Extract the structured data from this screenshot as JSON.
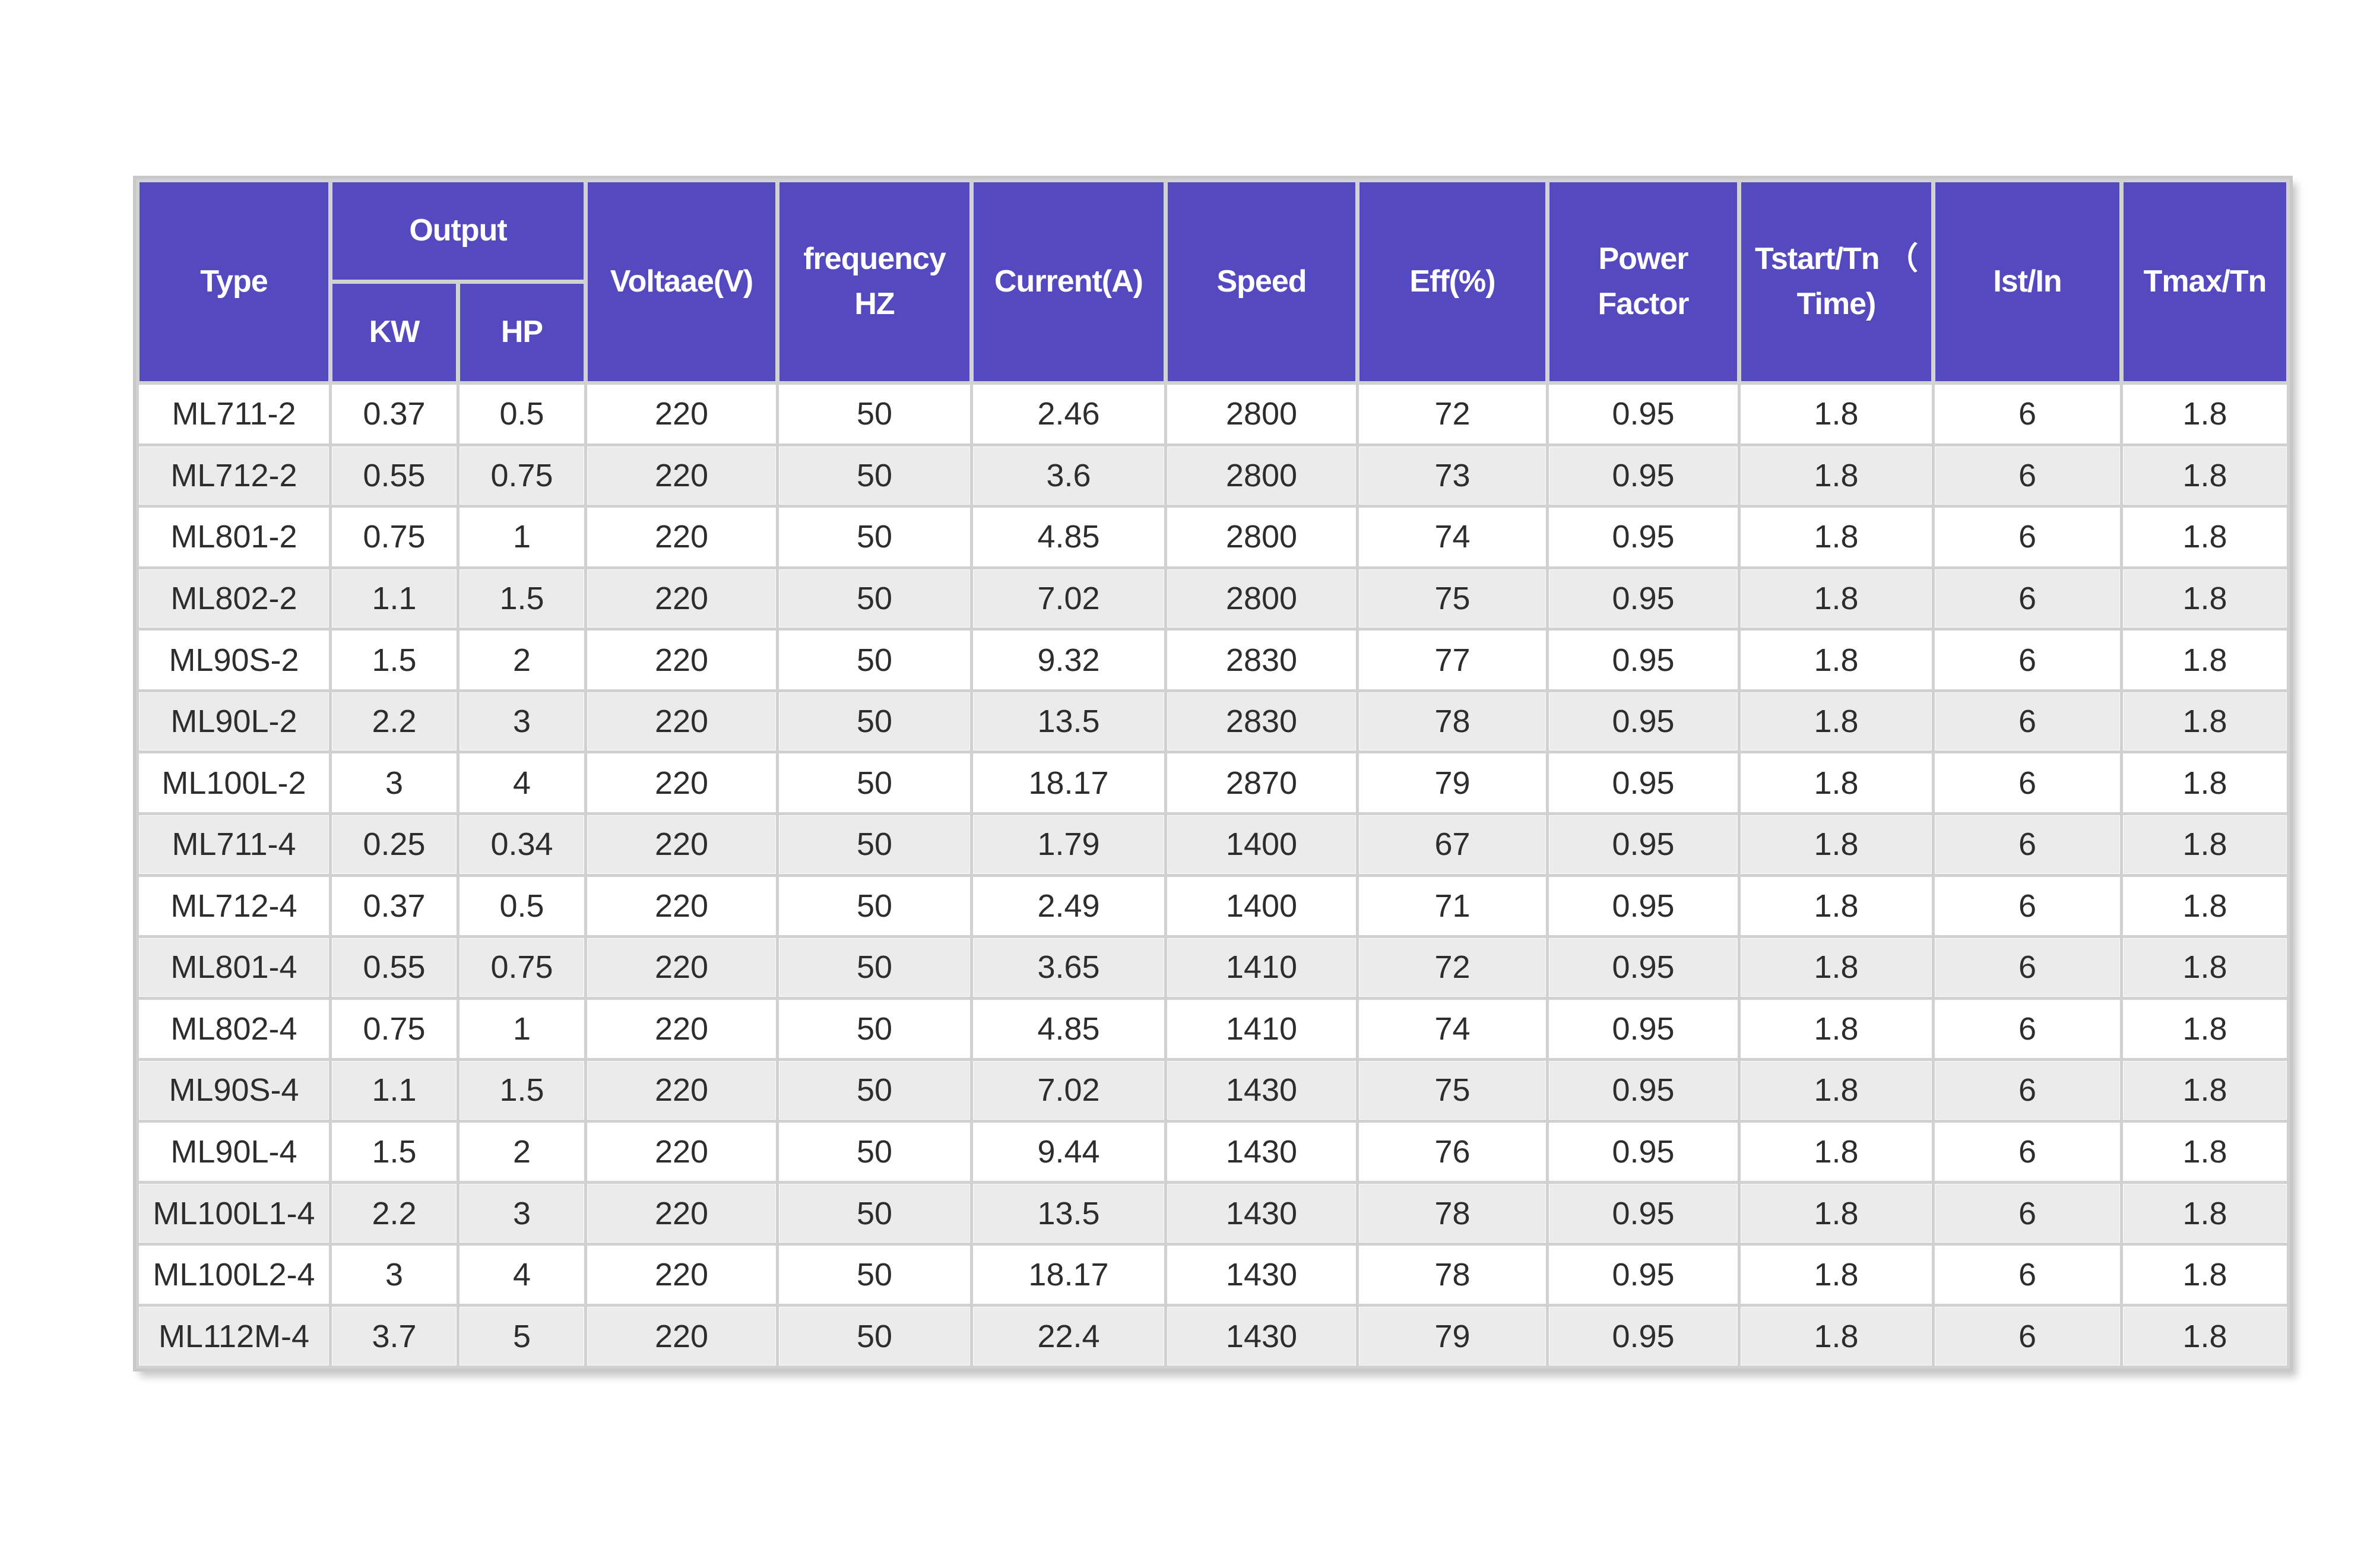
{
  "table": {
    "output_group_label": "Output",
    "columns": [
      {
        "key": "type",
        "label": "Type"
      },
      {
        "key": "kw",
        "label": "KW"
      },
      {
        "key": "hp",
        "label": "HP"
      },
      {
        "key": "voltage",
        "label": "Voltaae(V)"
      },
      {
        "key": "frequency",
        "label": "frequency\nHZ"
      },
      {
        "key": "current",
        "label": "Current(A)"
      },
      {
        "key": "speed",
        "label": "Speed"
      },
      {
        "key": "eff",
        "label": "Eff(%)"
      },
      {
        "key": "power_factor",
        "label": "Power Factor"
      },
      {
        "key": "tstart",
        "label": "Tstart/Tn （\nTime)"
      },
      {
        "key": "ist",
        "label": "Ist/In"
      },
      {
        "key": "tmax",
        "label": "Tmax/Tn"
      }
    ],
    "rows": [
      [
        "ML711-2",
        "0.37",
        "0.5",
        "220",
        "50",
        "2.46",
        "2800",
        "72",
        "0.95",
        "1.8",
        "6",
        "1.8"
      ],
      [
        "ML712-2",
        "0.55",
        "0.75",
        "220",
        "50",
        "3.6",
        "2800",
        "73",
        "0.95",
        "1.8",
        "6",
        "1.8"
      ],
      [
        "ML801-2",
        "0.75",
        "1",
        "220",
        "50",
        "4.85",
        "2800",
        "74",
        "0.95",
        "1.8",
        "6",
        "1.8"
      ],
      [
        "ML802-2",
        "1.1",
        "1.5",
        "220",
        "50",
        "7.02",
        "2800",
        "75",
        "0.95",
        "1.8",
        "6",
        "1.8"
      ],
      [
        "ML90S-2",
        "1.5",
        "2",
        "220",
        "50",
        "9.32",
        "2830",
        "77",
        "0.95",
        "1.8",
        "6",
        "1.8"
      ],
      [
        "ML90L-2",
        "2.2",
        "3",
        "220",
        "50",
        "13.5",
        "2830",
        "78",
        "0.95",
        "1.8",
        "6",
        "1.8"
      ],
      [
        "ML100L-2",
        "3",
        "4",
        "220",
        "50",
        "18.17",
        "2870",
        "79",
        "0.95",
        "1.8",
        "6",
        "1.8"
      ],
      [
        "ML711-4",
        "0.25",
        "0.34",
        "220",
        "50",
        "1.79",
        "1400",
        "67",
        "0.95",
        "1.8",
        "6",
        "1.8"
      ],
      [
        "ML712-4",
        "0.37",
        "0.5",
        "220",
        "50",
        "2.49",
        "1400",
        "71",
        "0.95",
        "1.8",
        "6",
        "1.8"
      ],
      [
        "ML801-4",
        "0.55",
        "0.75",
        "220",
        "50",
        "3.65",
        "1410",
        "72",
        "0.95",
        "1.8",
        "6",
        "1.8"
      ],
      [
        "ML802-4",
        "0.75",
        "1",
        "220",
        "50",
        "4.85",
        "1410",
        "74",
        "0.95",
        "1.8",
        "6",
        "1.8"
      ],
      [
        "ML90S-4",
        "1.1",
        "1.5",
        "220",
        "50",
        "7.02",
        "1430",
        "75",
        "0.95",
        "1.8",
        "6",
        "1.8"
      ],
      [
        "ML90L-4",
        "1.5",
        "2",
        "220",
        "50",
        "9.44",
        "1430",
        "76",
        "0.95",
        "1.8",
        "6",
        "1.8"
      ],
      [
        "ML100L1-4",
        "2.2",
        "3",
        "220",
        "50",
        "13.5",
        "1430",
        "78",
        "0.95",
        "1.8",
        "6",
        "1.8"
      ],
      [
        "ML100L2-4",
        "3",
        "4",
        "220",
        "50",
        "18.17",
        "1430",
        "78",
        "0.95",
        "1.8",
        "6",
        "1.8"
      ],
      [
        "ML112M-4",
        "3.7",
        "5",
        "220",
        "50",
        "22.4",
        "1430",
        "79",
        "0.95",
        "1.8",
        "6",
        "1.8"
      ]
    ]
  },
  "colors": {
    "header_bg": "#5449be",
    "header_text": "#ffffff",
    "grid_line": "#d1d1d1",
    "outer_border": "#c8c8c8",
    "row_odd_bg": "#ffffff",
    "row_even_bg": "#ebebeb",
    "body_text": "#2d2d2d"
  }
}
